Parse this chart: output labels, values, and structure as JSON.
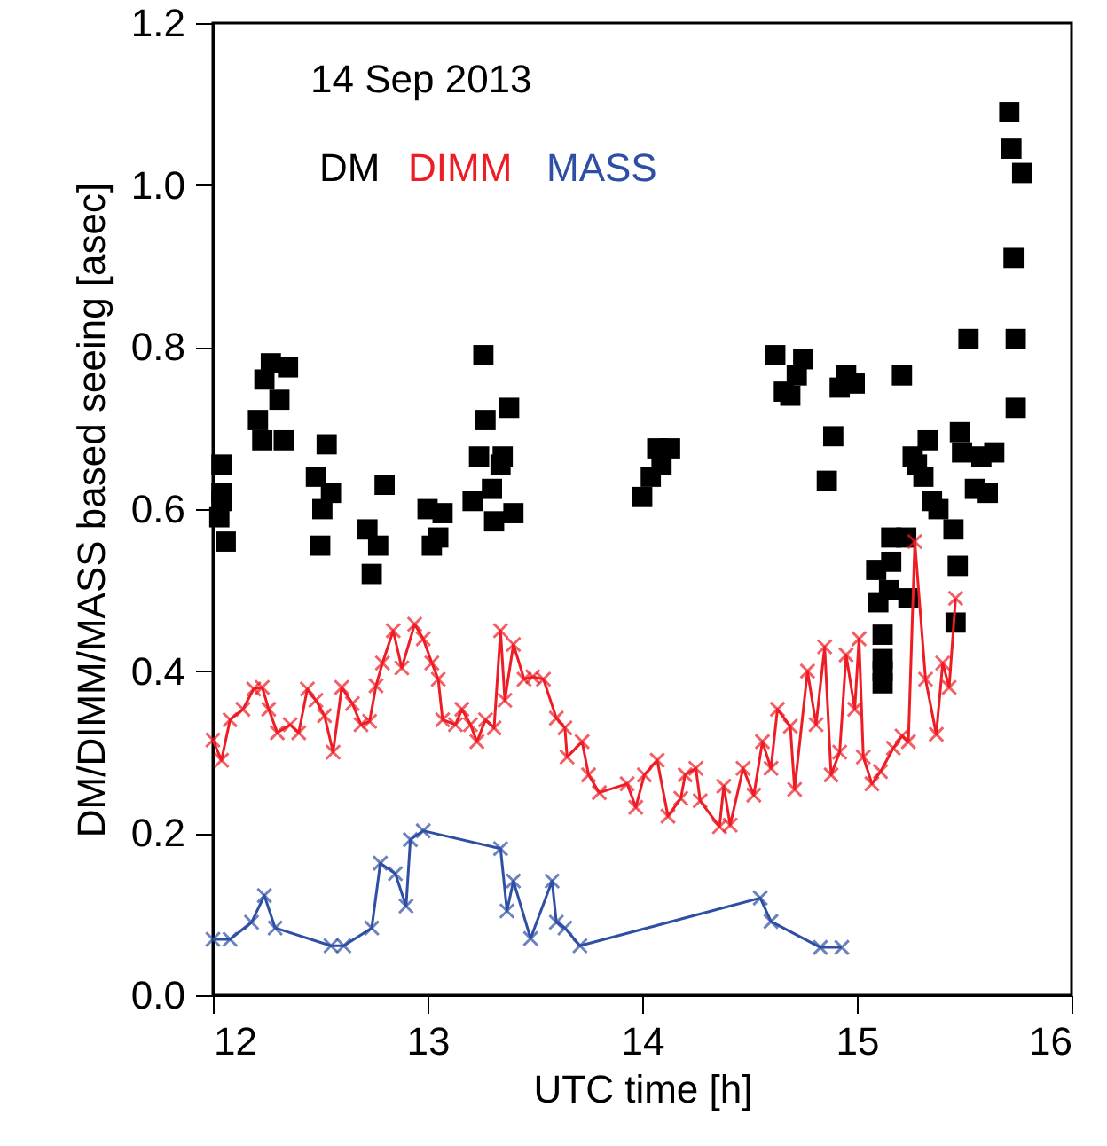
{
  "chart_data": {
    "type": "scatter",
    "annotations": [
      "14 Sep 2013"
    ],
    "xlabel": "UTC time [h]",
    "ylabel": "DM/DIMM/MASS based seeing [asec]",
    "xlim": [
      12,
      16
    ],
    "ylim": [
      0,
      1.2
    ],
    "xticks": [
      12,
      13,
      14,
      15,
      16
    ],
    "yticks": [
      {
        "value": 0,
        "label": "0.0"
      },
      {
        "value": 0.2,
        "label": "0.2"
      },
      {
        "value": 0.4,
        "label": "0.4"
      },
      {
        "value": 0.6,
        "label": "0.6"
      },
      {
        "value": 0.8,
        "label": "0.8"
      },
      {
        "value": 1,
        "label": "1.0"
      },
      {
        "value": 1.2,
        "label": "1.2"
      }
    ],
    "grid": false,
    "legend": "top left",
    "series": [
      {
        "name": "DM",
        "marker": "square",
        "color": "#000000",
        "x": [
          12.04,
          12.04,
          12.04,
          12.03,
          12.06,
          12.27,
          12.35,
          12.24,
          12.31,
          12.21,
          12.23,
          12.33,
          12.53,
          12.48,
          12.55,
          12.51,
          12.5,
          12.8,
          12.72,
          12.77,
          12.74,
          13.0,
          13.07,
          13.05,
          13.02,
          13.26,
          13.27,
          13.38,
          13.24,
          13.35,
          13.34,
          13.3,
          13.21,
          13.31,
          13.4,
          14.0,
          14.04,
          14.09,
          14.07,
          14.13,
          14.62,
          14.75,
          14.72,
          14.66,
          14.69,
          14.95,
          14.92,
          14.99,
          15.21,
          14.89,
          14.86,
          15.52,
          15.74,
          15.74,
          15.48,
          15.49,
          15.33,
          15.26,
          15.28,
          15.31,
          15.58,
          15.64,
          15.55,
          15.61,
          15.35,
          15.38,
          15.45,
          15.16,
          15.23,
          15.47,
          15.16,
          15.09,
          15.15,
          15.24,
          15.1,
          15.12,
          15.12,
          15.12,
          15.12,
          15.46,
          15.71,
          15.72,
          15.77,
          15.73
        ],
        "values": [
          0.655,
          0.62,
          0.61,
          0.59,
          0.56,
          0.78,
          0.775,
          0.76,
          0.735,
          0.71,
          0.685,
          0.685,
          0.68,
          0.64,
          0.62,
          0.6,
          0.555,
          0.63,
          0.575,
          0.555,
          0.52,
          0.6,
          0.595,
          0.565,
          0.555,
          0.79,
          0.71,
          0.725,
          0.665,
          0.665,
          0.655,
          0.625,
          0.61,
          0.585,
          0.595,
          0.615,
          0.64,
          0.655,
          0.675,
          0.675,
          0.79,
          0.785,
          0.765,
          0.745,
          0.74,
          0.765,
          0.75,
          0.755,
          0.765,
          0.69,
          0.635,
          0.81,
          0.81,
          0.725,
          0.695,
          0.67,
          0.685,
          0.665,
          0.655,
          0.64,
          0.665,
          0.67,
          0.625,
          0.62,
          0.61,
          0.6,
          0.575,
          0.565,
          0.565,
          0.53,
          0.535,
          0.525,
          0.5,
          0.49,
          0.485,
          0.445,
          0.415,
          0.4,
          0.385,
          0.46,
          1.09,
          1.045,
          1.015,
          0.91
        ]
      },
      {
        "name": "DIMM",
        "type": "line",
        "marker": "cross",
        "color": "#ee1c24",
        "x": [
          12.0,
          12.04,
          12.08,
          12.14,
          12.19,
          12.23,
          12.26,
          12.3,
          12.36,
          12.4,
          12.44,
          12.48,
          12.52,
          12.56,
          12.6,
          12.65,
          12.69,
          12.73,
          12.76,
          12.79,
          12.84,
          12.88,
          12.94,
          12.98,
          13.02,
          13.05,
          13.07,
          13.13,
          13.16,
          13.2,
          13.23,
          13.27,
          13.31,
          13.34,
          13.36,
          13.4,
          13.45,
          13.49,
          13.54,
          13.6,
          13.64,
          13.65,
          13.72,
          13.75,
          13.8,
          13.93,
          13.97,
          14.01,
          14.07,
          14.12,
          14.18,
          14.2,
          14.25,
          14.27,
          14.36,
          14.38,
          14.41,
          14.47,
          14.52,
          14.56,
          14.6,
          14.63,
          14.69,
          14.71,
          14.77,
          14.81,
          14.85,
          14.88,
          14.92,
          14.95,
          14.99,
          15.01,
          15.03,
          15.07,
          15.11,
          15.17,
          15.21,
          15.24,
          15.27,
          15.32,
          15.37,
          15.4,
          15.43,
          15.46
        ],
        "values": [
          0.315,
          0.29,
          0.34,
          0.353,
          0.378,
          0.38,
          0.353,
          0.324,
          0.334,
          0.324,
          0.378,
          0.364,
          0.345,
          0.3,
          0.38,
          0.36,
          0.334,
          0.338,
          0.382,
          0.41,
          0.45,
          0.404,
          0.458,
          0.44,
          0.41,
          0.39,
          0.34,
          0.334,
          0.353,
          0.334,
          0.313,
          0.34,
          0.33,
          0.45,
          0.364,
          0.433,
          0.39,
          0.393,
          0.39,
          0.342,
          0.33,
          0.294,
          0.313,
          0.272,
          0.25,
          0.261,
          0.232,
          0.272,
          0.29,
          0.221,
          0.243,
          0.272,
          0.28,
          0.24,
          0.208,
          0.258,
          0.21,
          0.28,
          0.247,
          0.313,
          0.28,
          0.353,
          0.332,
          0.254,
          0.4,
          0.334,
          0.43,
          0.272,
          0.3,
          0.42,
          0.353,
          0.44,
          0.294,
          0.261,
          0.276,
          0.305,
          0.32,
          0.313,
          0.56,
          0.39,
          0.322,
          0.41,
          0.38,
          0.49
        ]
      },
      {
        "name": "MASS",
        "type": "line",
        "marker": "cross",
        "color": "#2e4fa3",
        "x": [
          12.0,
          12.08,
          12.18,
          12.24,
          12.29,
          12.55,
          12.61,
          12.74,
          12.78,
          12.85,
          12.9,
          12.92,
          12.98,
          13.34,
          13.37,
          13.4,
          13.48,
          13.58,
          13.6,
          13.64,
          13.71,
          14.55,
          14.6,
          14.83,
          14.93
        ],
        "values": [
          0.069,
          0.069,
          0.09,
          0.123,
          0.083,
          0.061,
          0.061,
          0.083,
          0.163,
          0.15,
          0.11,
          0.192,
          0.203,
          0.181,
          0.104,
          0.141,
          0.07,
          0.141,
          0.09,
          0.083,
          0.061,
          0.12,
          0.091,
          0.059,
          0.059
        ]
      }
    ]
  }
}
